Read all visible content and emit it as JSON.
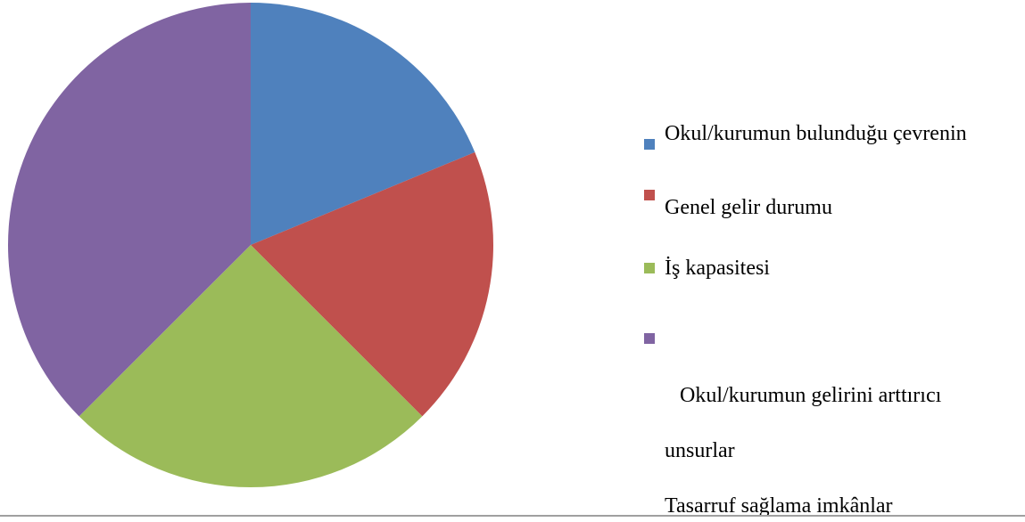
{
  "chart_data": {
    "type": "pie",
    "categories": [
      "Okul/kurumun bulunduğu çevrenin",
      "Genel gelir durumu",
      "İş kapasitesi",
      "Okul/kurumun gelirini arttırıcı\nunsurlar\nTasarruf sağlama imkânlar"
    ],
    "values": [
      18.75,
      18.75,
      25,
      37.5
    ],
    "colors": [
      "#4f81bd",
      "#c0504d",
      "#9bbb59",
      "#8064a2"
    ],
    "legend": "right"
  }
}
